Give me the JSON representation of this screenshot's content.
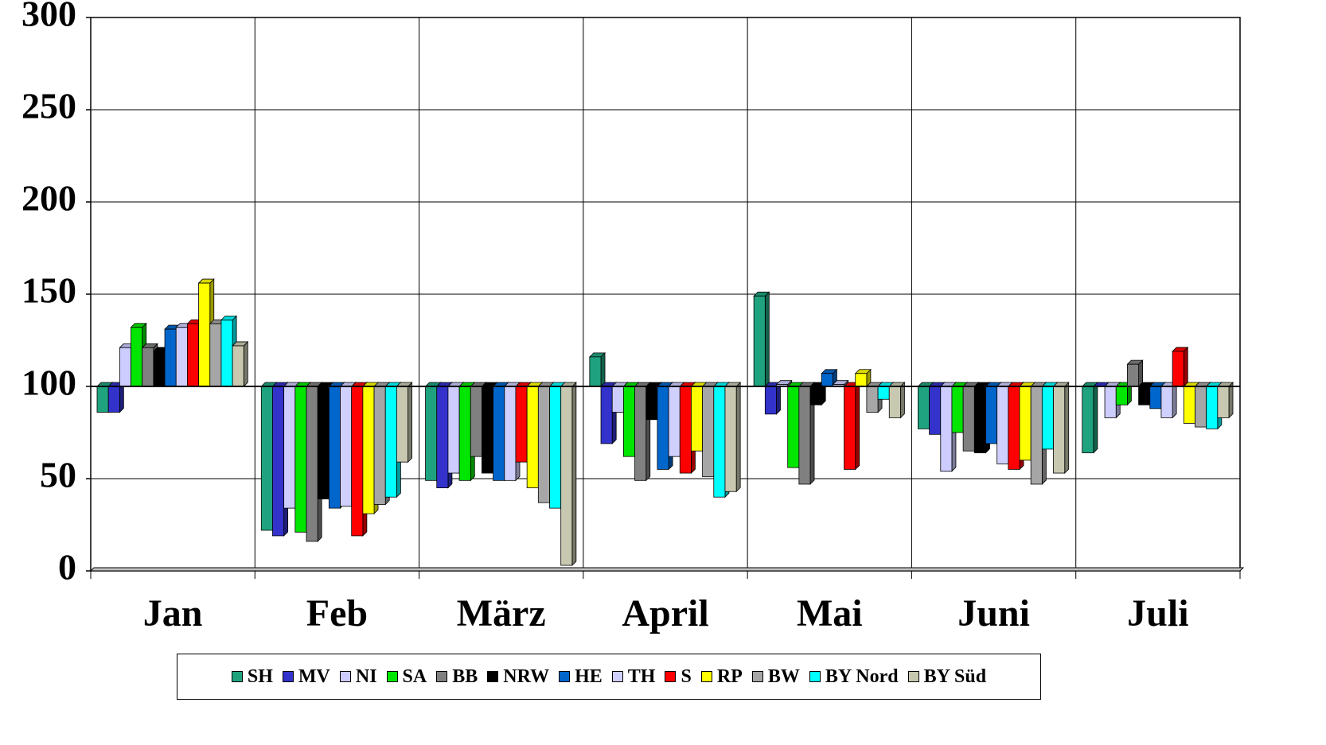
{
  "chart_data": {
    "type": "bar",
    "baseline": 100,
    "categories": [
      "Jan",
      "Feb",
      "März",
      "April",
      "Mai",
      "Juni",
      "Juli"
    ],
    "ylim": [
      0,
      300
    ],
    "yticks": [
      0,
      50,
      100,
      150,
      200,
      250,
      300
    ],
    "grid": true,
    "series": [
      {
        "name": "SH",
        "color": "#1fa37f",
        "values": [
          86,
          22,
          49,
          116,
          149,
          77,
          64
        ]
      },
      {
        "name": "MV",
        "color": "#3333cc",
        "values": [
          86,
          19,
          45,
          69,
          85,
          74,
          100
        ]
      },
      {
        "name": "NI",
        "color": "#ccccff",
        "values": [
          121,
          34,
          53,
          86,
          101,
          54,
          83
        ]
      },
      {
        "name": "SA",
        "color": "#00e600",
        "values": [
          132,
          21,
          49,
          62,
          56,
          75,
          90
        ]
      },
      {
        "name": "BB",
        "color": "#808080",
        "values": [
          121,
          16,
          62,
          49,
          47,
          65,
          112
        ]
      },
      {
        "name": "NRW",
        "color": "#000000",
        "values": [
          119,
          39,
          53,
          82,
          90,
          64,
          90
        ]
      },
      {
        "name": "HE",
        "color": "#0066cc",
        "values": [
          131,
          34,
          49,
          55,
          107,
          69,
          88
        ]
      },
      {
        "name": "TH",
        "color": "#d0d0ff",
        "values": [
          132,
          35,
          49,
          62,
          101,
          58,
          83
        ]
      },
      {
        "name": "S",
        "color": "#ff0000",
        "values": [
          134,
          19,
          59,
          53,
          55,
          55,
          119
        ]
      },
      {
        "name": "RP",
        "color": "#ffff00",
        "values": [
          156,
          31,
          45,
          65,
          107,
          60,
          80
        ]
      },
      {
        "name": "BW",
        "color": "#a6a6a6",
        "values": [
          134,
          36,
          37,
          51,
          86,
          47,
          78
        ]
      },
      {
        "name": "BY Nord",
        "color": "#00ffff",
        "values": [
          136,
          40,
          34,
          40,
          93,
          66,
          77
        ]
      },
      {
        "name": "BY Süd",
        "color": "#c8c8b0",
        "values": [
          122,
          59,
          3,
          43,
          83,
          53,
          83
        ]
      }
    ]
  }
}
